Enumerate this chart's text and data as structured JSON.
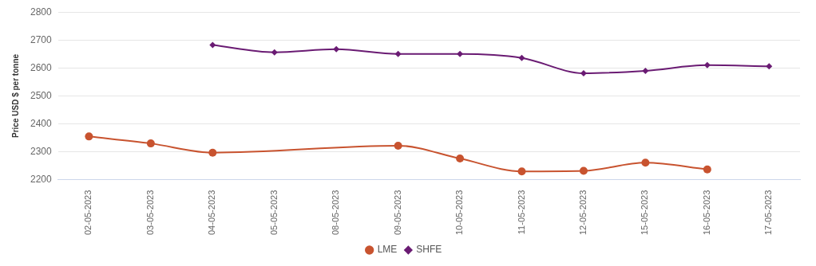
{
  "chart_data": {
    "type": "line",
    "ylabel": "Price USD $ per tonne",
    "categories": [
      "02-05-2023",
      "03-05-2023",
      "04-05-2023",
      "05-05-2023",
      "08-05-2023",
      "09-05-2023",
      "10-05-2023",
      "11-05-2023",
      "12-05-2023",
      "15-05-2023",
      "16-05-2023",
      "17-05-2023"
    ],
    "series": [
      {
        "name": "LME",
        "color": "#c8532f",
        "marker": "circle",
        "values": [
          2355,
          2330,
          2297,
          null,
          null,
          2322,
          2276,
          2230,
          2232,
          2261,
          2237,
          null
        ]
      },
      {
        "name": "SHFE",
        "color": "#6a1b73",
        "marker": "diamond",
        "values": [
          null,
          null,
          2682,
          2656,
          2667,
          2650,
          2650,
          2636,
          2581,
          2590,
          2610,
          2606
        ]
      }
    ],
    "ylim": [
      2200,
      2800
    ],
    "yticks": [
      2200,
      2300,
      2400,
      2500,
      2600,
      2700,
      2800
    ],
    "grid": "y",
    "legend": "bottom",
    "line_style": "solid"
  }
}
